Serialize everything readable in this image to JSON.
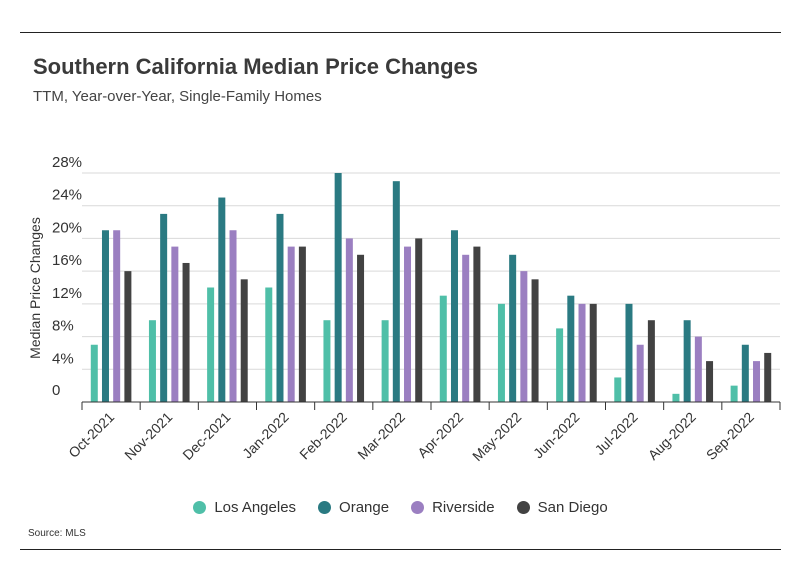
{
  "header": {
    "title": "Southern California Median Price Changes",
    "subtitle": "TTM, Year-over-Year, Single-Family Homes"
  },
  "footer": {
    "source": "Source:  MLS"
  },
  "chart_data": {
    "type": "bar",
    "title": "Southern California Median Price Changes",
    "subtitle": "TTM, Year-over-Year, Single-Family Homes",
    "xlabel": "",
    "ylabel": "Median Price Changes",
    "ylim": [
      0,
      28
    ],
    "yticks": [
      "0",
      "4%",
      "8%",
      "12%",
      "16%",
      "20%",
      "24%",
      "28%"
    ],
    "ytick_values": [
      0,
      4,
      8,
      12,
      16,
      20,
      24,
      28
    ],
    "grid": true,
    "legend_position": "bottom",
    "categories": [
      "Oct-2021",
      "Nov-2021",
      "Dec-2021",
      "Jan-2022",
      "Feb-2022",
      "Mar-2022",
      "Apr-2022",
      "May-2022",
      "Jun-2022",
      "Jul-2022",
      "Aug-2022",
      "Sep-2022"
    ],
    "series": [
      {
        "name": "Los Angeles",
        "color": "#4fbfa8",
        "values": [
          7,
          10,
          14,
          14,
          10,
          10,
          13,
          12,
          9,
          3,
          1,
          2
        ]
      },
      {
        "name": "Orange",
        "color": "#2a7a82",
        "values": [
          21,
          23,
          25,
          23,
          28,
          27,
          21,
          18,
          13,
          12,
          10,
          7
        ]
      },
      {
        "name": "Riverside",
        "color": "#9b7fc1",
        "values": [
          21,
          19,
          21,
          19,
          20,
          19,
          18,
          16,
          12,
          7,
          8,
          5
        ]
      },
      {
        "name": "San Diego",
        "color": "#424242",
        "values": [
          16,
          17,
          15,
          19,
          18,
          20,
          19,
          15,
          12,
          10,
          5,
          6
        ]
      }
    ]
  }
}
